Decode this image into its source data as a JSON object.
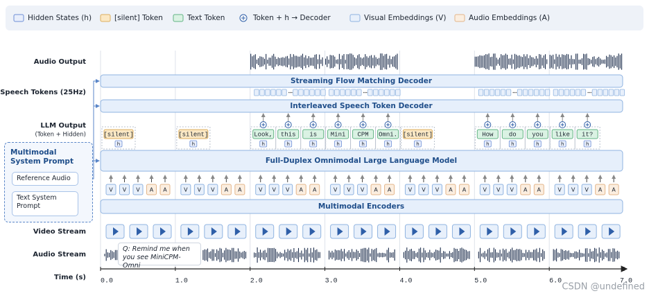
{
  "legend": [
    {
      "label": "Hidden States (h)",
      "icon": "hidden"
    },
    {
      "label": "[silent] Token",
      "icon": "silent"
    },
    {
      "label": "Text Token",
      "icon": "text"
    },
    {
      "label": "Token + h → Decoder",
      "icon": "plus"
    },
    {
      "label": "Visual Embeddings (V)",
      "icon": "visual"
    },
    {
      "label": "Audio Embeddings (A)",
      "icon": "audio"
    }
  ],
  "row_labels": {
    "audio_output": "Audio Output",
    "speech_tokens": "Speech Tokens (25Hz)",
    "llm_output": "LLM Output",
    "llm_output_sub": "(Token + Hidden)",
    "video_stream": "Video Stream",
    "audio_stream": "Audio Stream",
    "time": "Time (s)"
  },
  "modules": {
    "flow_decoder": "Streaming Flow Matching Decoder",
    "speech_decoder": "Interleaved Speech Token Decoder",
    "llm": "Full-Duplex Omnimodal Large Language Model",
    "encoders": "Multimodal Encoders"
  },
  "system_prompt": {
    "title": "Multimodal System Prompt",
    "items": [
      "Reference Audio",
      "Text System Prompt"
    ]
  },
  "hidden_label": "h",
  "embedding_labels": [
    "V",
    "V",
    "V",
    "A",
    "A"
  ],
  "segments": [
    {
      "tokens": [
        {
          "text": "[silent]",
          "kind": "silent"
        }
      ]
    },
    {
      "tokens": [
        {
          "text": "[silent]",
          "kind": "silent"
        }
      ]
    },
    {
      "tokens": [
        {
          "text": "Look,",
          "kind": "text"
        },
        {
          "text": "this",
          "kind": "text"
        },
        {
          "text": "is",
          "kind": "text"
        }
      ]
    },
    {
      "tokens": [
        {
          "text": "Mini",
          "kind": "text"
        },
        {
          "text": "CPM",
          "kind": "text"
        },
        {
          "text": "Omni.",
          "kind": "text"
        }
      ]
    },
    {
      "tokens": [
        {
          "text": "[silent]",
          "kind": "silent"
        }
      ]
    },
    {
      "tokens": [
        {
          "text": "How",
          "kind": "text"
        },
        {
          "text": "do",
          "kind": "text"
        },
        {
          "text": "you",
          "kind": "text"
        }
      ]
    },
    {
      "tokens": [
        {
          "text": "like",
          "kind": "text"
        },
        {
          "text": "it?",
          "kind": "text"
        }
      ]
    }
  ],
  "query": "Q: Remind me when you see MiniCPM-Omni",
  "time_ticks": [
    "0.0",
    "1.0",
    "2.0",
    "3.0",
    "4.0",
    "5.0",
    "6.0",
    "7.0"
  ],
  "watermark": "CSDN @undefined"
}
